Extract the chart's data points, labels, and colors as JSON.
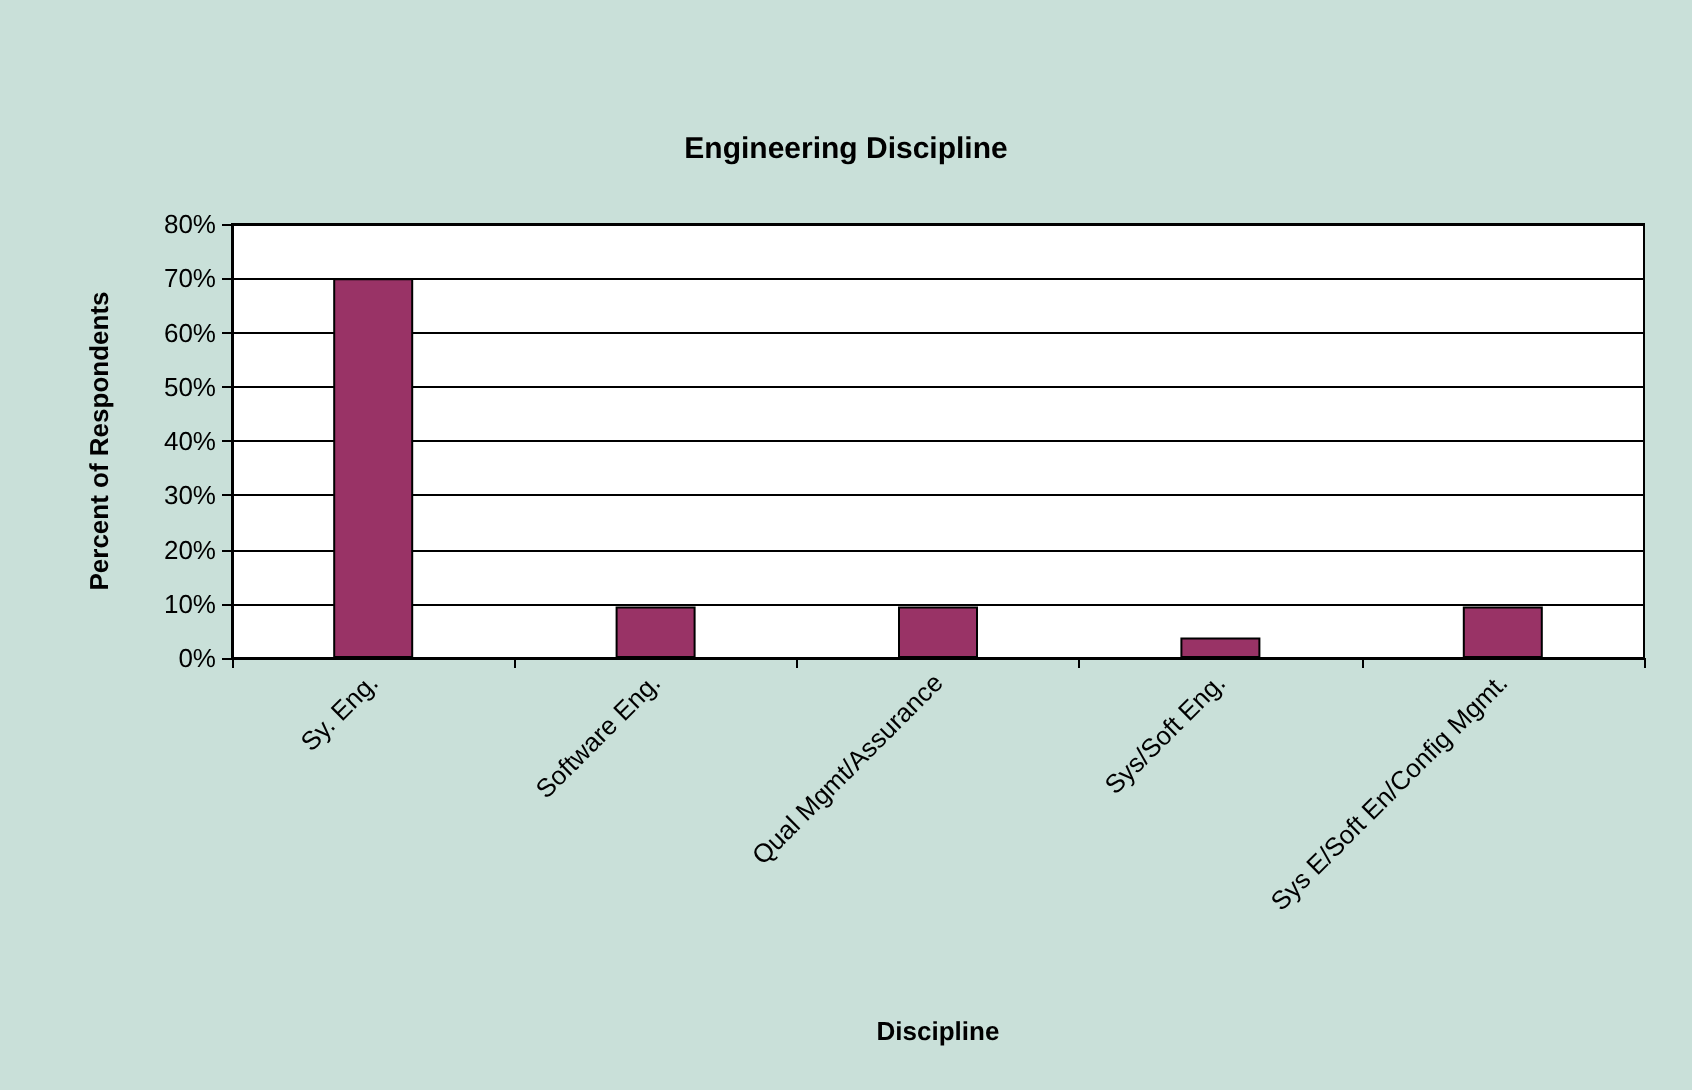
{
  "chart_data": {
    "type": "bar",
    "title": "Engineering Discipline",
    "xlabel": "Discipline",
    "ylabel": "Percent of Respondents",
    "categories": [
      "Sy. Eng.",
      "Software Eng.",
      "Qual Mgmt/Assurance",
      "Sys/Soft Eng.",
      "Sys E/Soft En/Config Mgmt."
    ],
    "values": [
      70,
      9.5,
      9.5,
      3.8,
      9.5
    ],
    "color": "#993366",
    "ylim": [
      0,
      80
    ],
    "yticks": [
      {
        "value": 0,
        "label": "0%"
      },
      {
        "value": 10,
        "label": "10%"
      },
      {
        "value": 20,
        "label": "20%"
      },
      {
        "value": 30,
        "label": "30%"
      },
      {
        "value": 40,
        "label": "40%"
      },
      {
        "value": 50,
        "label": "50%"
      },
      {
        "value": 60,
        "label": "60%"
      },
      {
        "value": 70,
        "label": "70%"
      },
      {
        "value": 80,
        "label": "80%"
      }
    ],
    "grid": "y"
  }
}
